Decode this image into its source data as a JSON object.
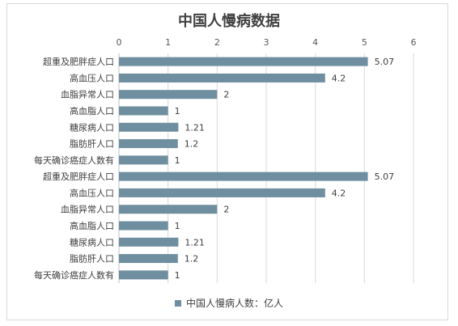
{
  "chart_data": {
    "type": "bar",
    "orientation": "horizontal",
    "title": "中国人慢病数据",
    "categories": [
      "超重及肥胖症人口",
      "高血压人口",
      "血脂异常人口",
      "高血脂人口",
      "糖尿病人口",
      "脂肪肝人口",
      "每天确诊癌症人数有",
      "超重及肥胖症人口",
      "高血压人口",
      "血脂异常人口",
      "高血脂人口",
      "糖尿病人口",
      "脂肪肝人口",
      "每天确诊癌症人数有"
    ],
    "series": [
      {
        "name": "中国人慢病人数：亿人",
        "values": [
          5.07,
          4.2,
          2,
          1,
          1.21,
          1.2,
          1,
          5.07,
          4.2,
          2,
          1,
          1.21,
          1.2,
          1
        ]
      }
    ],
    "data_labels": [
      "5.07",
      "4.2",
      "2",
      "1",
      "1.21",
      "1.2",
      "1",
      "5.07",
      "4.2",
      "2",
      "1",
      "1.21",
      "1.2",
      "1"
    ],
    "xlim": [
      0,
      6
    ],
    "xticks": [
      "0",
      "1",
      "2",
      "3",
      "4",
      "5",
      "6"
    ],
    "x_axis_position": "top",
    "grid": true,
    "legend_position": "bottom",
    "bar_color": "#6f8fa0"
  }
}
